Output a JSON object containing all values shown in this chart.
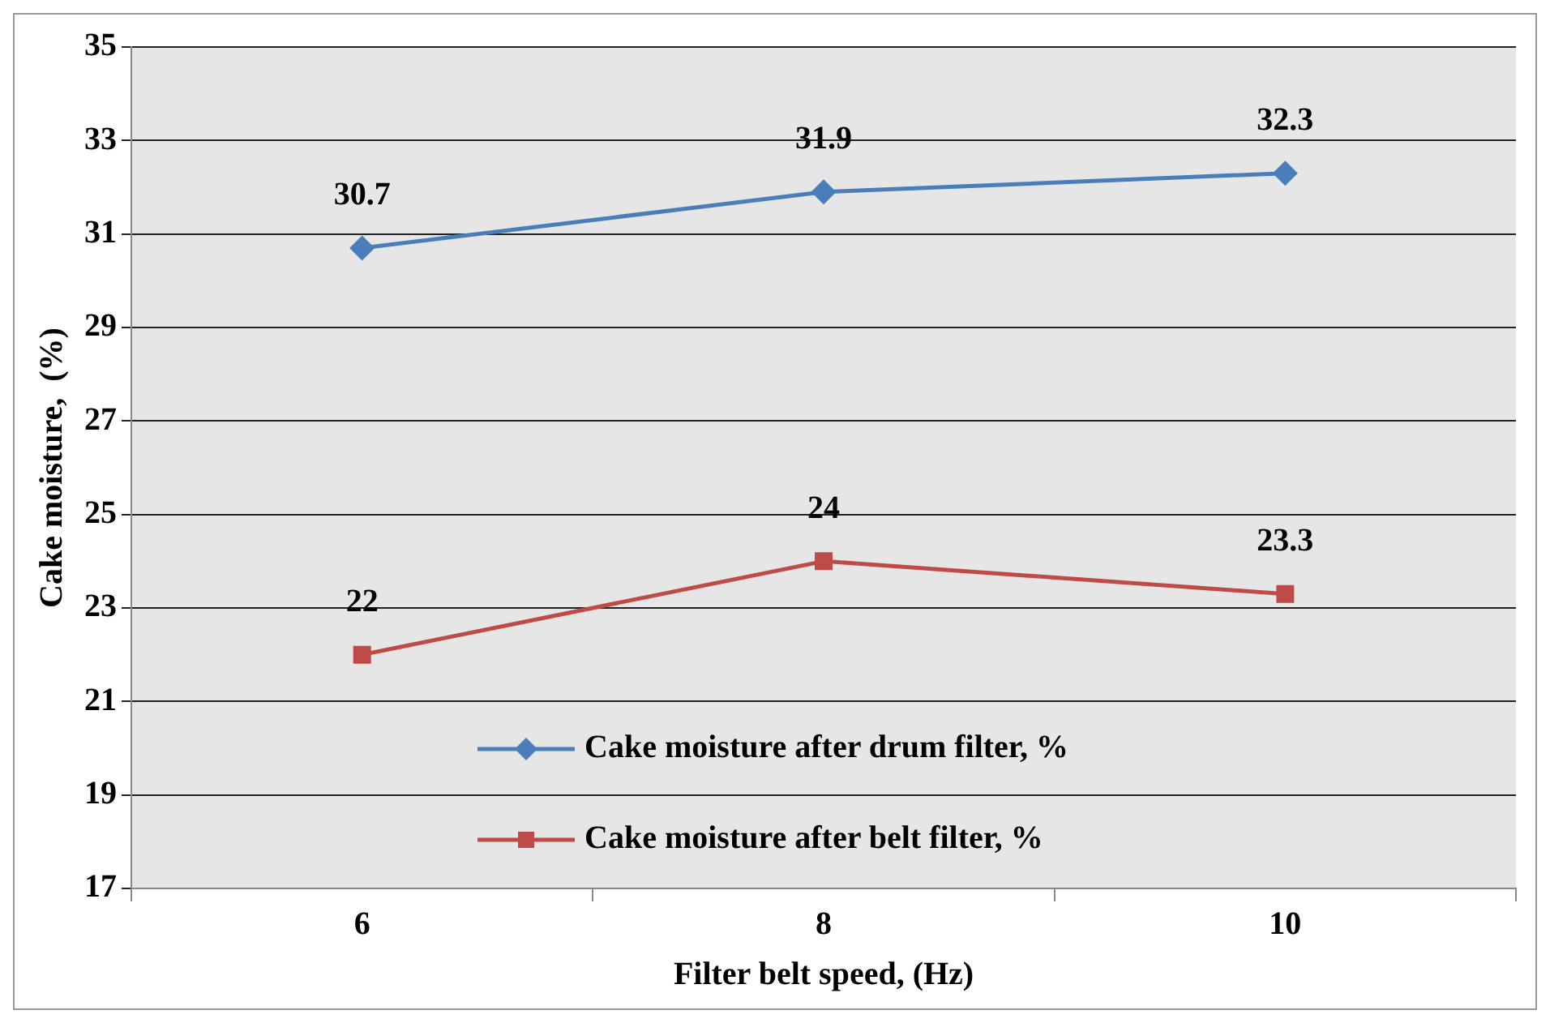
{
  "chart_data": {
    "type": "line",
    "xlabel": "Filter belt speed, (Hz)",
    "ylabel": "Cake moisture,  (%)",
    "categories": [
      "6",
      "8",
      "10"
    ],
    "series": [
      {
        "name": "Cake moisture after drum filter, %",
        "color": "#4a7ebb",
        "values": [
          30.7,
          31.9,
          32.3
        ],
        "marker": "diamond"
      },
      {
        "name": "Cake moisture after belt filter, %",
        "color": "#be4b48",
        "values": [
          22,
          24,
          23.3
        ],
        "marker": "square"
      }
    ],
    "ylim": [
      17,
      35
    ],
    "yticks": [
      17,
      19,
      21,
      23,
      25,
      27,
      29,
      31,
      33,
      35
    ],
    "grid": "y",
    "legend": "bottom",
    "data_labels": true,
    "line_style": "solid"
  }
}
